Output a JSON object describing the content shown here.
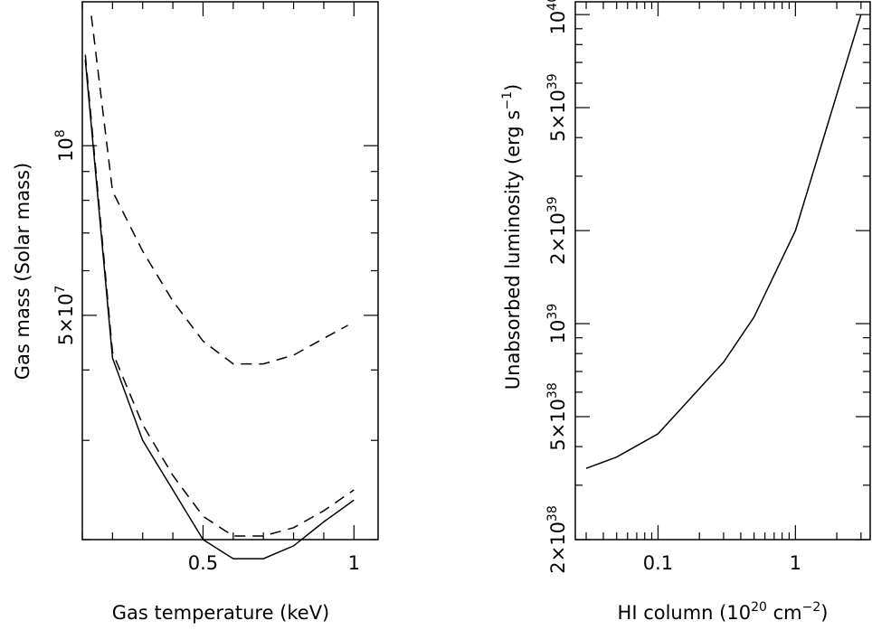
{
  "chart_data": [
    {
      "type": "line",
      "xlabel": "Gas temperature (keV)",
      "ylabel": "Gas mass (Solar mass)",
      "x_scale": "linear",
      "y_scale": "log",
      "xlim": [
        0.1,
        1.08
      ],
      "ylim": [
        20000000,
        180000000
      ],
      "x_ticks_labeled": [
        {
          "value": 0.5,
          "label": "0.5"
        },
        {
          "value": 1,
          "label": "1"
        }
      ],
      "y_ticks_labeled": [
        {
          "value": 50000000,
          "label": "5×10",
          "exp": "7"
        },
        {
          "value": 100000000,
          "label": "10",
          "exp": "8"
        }
      ],
      "series": [
        {
          "style": "dashed",
          "points": [
            [
              0.13,
              170000000
            ],
            [
              0.2,
              83000000
            ],
            [
              0.3,
              65000000
            ],
            [
              0.4,
              53000000
            ],
            [
              0.5,
              45000000
            ],
            [
              0.6,
              41000000
            ],
            [
              0.7,
              41000000
            ],
            [
              0.8,
              42500000
            ],
            [
              0.9,
              45500000
            ],
            [
              0.98,
              48000000
            ]
          ]
        },
        {
          "style": "dashed",
          "points": [
            [
              0.11,
              145000000
            ],
            [
              0.2,
              43000000
            ],
            [
              0.3,
              32000000
            ],
            [
              0.4,
              26000000
            ],
            [
              0.5,
              22000000
            ],
            [
              0.6,
              20300000
            ],
            [
              0.7,
              20300000
            ],
            [
              0.8,
              21000000
            ],
            [
              0.9,
              22500000
            ],
            [
              1.0,
              24500000
            ]
          ]
        },
        {
          "style": "solid",
          "points": [
            [
              0.11,
              142000000
            ],
            [
              0.2,
              42000000
            ],
            [
              0.3,
              30000000
            ],
            [
              0.4,
              24500000
            ],
            [
              0.5,
              20000000
            ],
            [
              0.6,
              18500000
            ],
            [
              0.7,
              18500000
            ],
            [
              0.8,
              19500000
            ],
            [
              0.9,
              21500000
            ],
            [
              1.0,
              23500000
            ]
          ]
        }
      ]
    },
    {
      "type": "line",
      "xlabel": "HI column (10",
      "xlabel_exp": "20",
      "xlabel_tail": " cm",
      "xlabel_tail_exp": "−2",
      "xlabel_close": ")",
      "ylabel": "Unabsorbed luminosity (erg s",
      "ylabel_exp": "−1",
      "ylabel_close": ")",
      "x_scale": "log",
      "y_scale": "log",
      "xlim": [
        0.025,
        3.5
      ],
      "ylim": [
        2e+38,
        1.1e+40
      ],
      "x_ticks_labeled": [
        {
          "value": 0.1,
          "label": "0.1"
        },
        {
          "value": 1,
          "label": "1"
        }
      ],
      "y_ticks_labeled": [
        {
          "value": 2e+38,
          "label": "2×10",
          "exp": "38"
        },
        {
          "value": 5e+38,
          "label": "5×10",
          "exp": "38"
        },
        {
          "value": 1e+39,
          "label": "10",
          "exp": "39"
        },
        {
          "value": 2e+39,
          "label": "2×10",
          "exp": "39"
        },
        {
          "value": 5e+39,
          "label": "5×10",
          "exp": "39"
        },
        {
          "value": 1e+40,
          "label": "10",
          "exp": "40"
        }
      ],
      "series": [
        {
          "style": "solid",
          "points": [
            [
              0.03,
              3.4e+38
            ],
            [
              0.05,
              3.7e+38
            ],
            [
              0.1,
              4.4e+38
            ],
            [
              0.3,
              7.5e+38
            ],
            [
              0.5,
              1.05e+39
            ],
            [
              1,
              2e+39
            ],
            [
              3,
              1e+40
            ]
          ]
        }
      ]
    }
  ]
}
